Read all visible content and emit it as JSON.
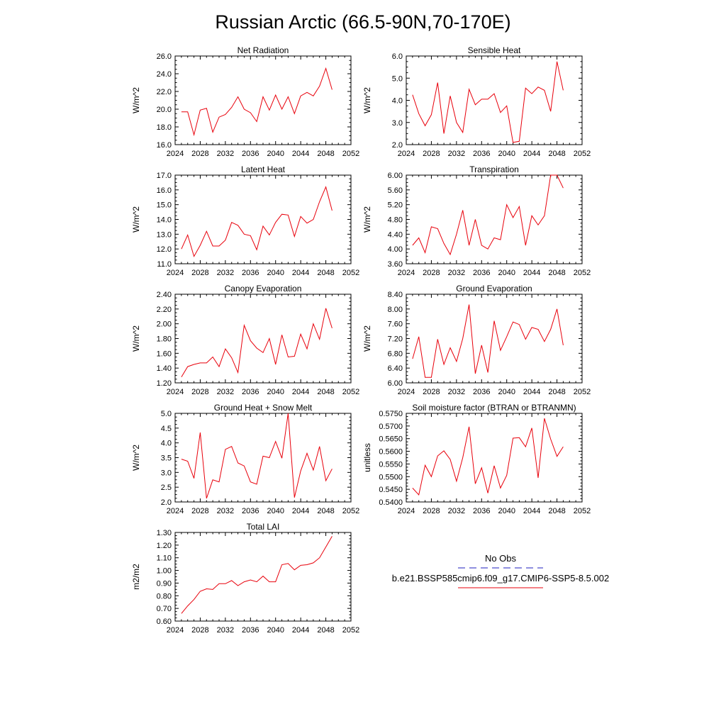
{
  "title": "Russian Arctic (66.5-90N,70-170E)",
  "colors": {
    "series": "#e8000b",
    "obs": "#1f1fbf",
    "axis": "#000000"
  },
  "legend": {
    "obs_label": "No Obs",
    "model_label": "b.e21.BSSP585cmip6.f09_g17.CMIP6-SSP5-8.5.002"
  },
  "years": [
    2025,
    2026,
    2027,
    2028,
    2029,
    2030,
    2031,
    2032,
    2033,
    2034,
    2035,
    2036,
    2037,
    2038,
    2039,
    2040,
    2041,
    2042,
    2043,
    2044,
    2045,
    2046,
    2047,
    2048,
    2049
  ],
  "chart_data": [
    {
      "type": "line",
      "title": "Net Radiation",
      "ylabel": "W/m^2",
      "xlim": [
        2024,
        2052
      ],
      "xticks": [
        "2024",
        "2028",
        "2032",
        "2036",
        "2040",
        "2044",
        "2048",
        "2052"
      ],
      "ylim": [
        16.0,
        26.0
      ],
      "yticks": [
        "16.0",
        "18.0",
        "20.0",
        "22.0",
        "24.0",
        "26.0"
      ],
      "values": [
        19.7,
        19.7,
        17.1,
        19.9,
        20.1,
        17.4,
        19.1,
        19.4,
        20.2,
        21.4,
        20.0,
        19.6,
        18.6,
        21.4,
        19.9,
        21.6,
        20.0,
        21.4,
        19.5,
        21.5,
        21.9,
        21.5,
        22.6,
        24.6,
        22.2
      ]
    },
    {
      "type": "line",
      "title": "Sensible Heat",
      "ylabel": "W/m^2",
      "xlim": [
        2024,
        2052
      ],
      "xticks": [
        "2024",
        "2028",
        "2032",
        "2036",
        "2040",
        "2044",
        "2048",
        "2052"
      ],
      "ylim": [
        2.0,
        6.0
      ],
      "yticks": [
        "2.0",
        "3.0",
        "4.0",
        "5.0",
        "6.0"
      ],
      "values": [
        4.25,
        3.4,
        2.85,
        3.35,
        4.8,
        2.5,
        4.2,
        3.0,
        2.55,
        4.5,
        3.8,
        4.05,
        4.05,
        4.3,
        3.45,
        3.75,
        2.1,
        2.15,
        4.55,
        4.3,
        4.6,
        4.45,
        3.5,
        5.75,
        4.45
      ]
    },
    {
      "type": "line",
      "title": "Latent Heat",
      "ylabel": "W/m^2",
      "xlim": [
        2024,
        2052
      ],
      "xticks": [
        "2024",
        "2028",
        "2032",
        "2036",
        "2040",
        "2044",
        "2048",
        "2052"
      ],
      "ylim": [
        11.0,
        17.0
      ],
      "yticks": [
        "11.0",
        "12.0",
        "13.0",
        "14.0",
        "15.0",
        "16.0",
        "17.0"
      ],
      "values": [
        12.0,
        12.95,
        11.5,
        12.25,
        13.2,
        12.2,
        12.2,
        12.6,
        13.8,
        13.6,
        13.0,
        12.9,
        11.95,
        13.55,
        12.95,
        13.8,
        14.35,
        14.3,
        12.85,
        14.2,
        13.75,
        14.0,
        15.2,
        16.2,
        14.6
      ]
    },
    {
      "type": "line",
      "title": "Transpiration",
      "ylabel": "W/m^2",
      "xlim": [
        2024,
        2052
      ],
      "xticks": [
        "2024",
        "2028",
        "2032",
        "2036",
        "2040",
        "2044",
        "2048",
        "2052"
      ],
      "ylim": [
        3.6,
        6.0
      ],
      "yticks": [
        "3.60",
        "4.00",
        "4.40",
        "4.80",
        "5.20",
        "5.60",
        "6.00"
      ],
      "values": [
        4.1,
        4.3,
        3.9,
        4.6,
        4.55,
        4.15,
        3.85,
        4.4,
        5.05,
        4.1,
        4.8,
        4.1,
        4.0,
        4.3,
        4.25,
        5.2,
        4.85,
        5.15,
        4.1,
        4.9,
        4.65,
        4.9,
        6.0,
        6.0,
        5.65
      ]
    },
    {
      "type": "line",
      "title": "Canopy Evaporation",
      "ylabel": "W/m^2",
      "xlim": [
        2024,
        2052
      ],
      "xticks": [
        "2024",
        "2028",
        "2032",
        "2036",
        "2040",
        "2044",
        "2048",
        "2052"
      ],
      "ylim": [
        1.2,
        2.4
      ],
      "yticks": [
        "1.20",
        "1.40",
        "1.60",
        "1.80",
        "2.00",
        "2.20",
        "2.40"
      ],
      "values": [
        1.28,
        1.42,
        1.45,
        1.47,
        1.47,
        1.55,
        1.42,
        1.66,
        1.54,
        1.34,
        1.98,
        1.77,
        1.67,
        1.61,
        1.8,
        1.45,
        1.85,
        1.55,
        1.56,
        1.86,
        1.66,
        2.0,
        1.79,
        2.21,
        1.94
      ]
    },
    {
      "type": "line",
      "title": "Ground Evaporation",
      "ylabel": "W/m^2",
      "xlim": [
        2024,
        2052
      ],
      "xticks": [
        "2024",
        "2028",
        "2032",
        "2036",
        "2040",
        "2044",
        "2048",
        "2052"
      ],
      "ylim": [
        6.0,
        8.4
      ],
      "yticks": [
        "6.00",
        "6.40",
        "6.80",
        "7.20",
        "7.60",
        "8.00",
        "8.40"
      ],
      "values": [
        6.65,
        7.25,
        6.15,
        6.15,
        7.18,
        6.5,
        6.95,
        6.58,
        7.2,
        8.12,
        6.25,
        7.02,
        6.28,
        7.68,
        6.88,
        7.25,
        7.65,
        7.58,
        7.18,
        7.5,
        7.45,
        7.12,
        7.45,
        8.0,
        7.02
      ]
    },
    {
      "type": "line",
      "title": "Ground Heat + Snow Melt",
      "ylabel": "W/m^2",
      "xlim": [
        2024,
        2052
      ],
      "xticks": [
        "2024",
        "2028",
        "2032",
        "2036",
        "2040",
        "2044",
        "2048",
        "2052"
      ],
      "ylim": [
        2.0,
        5.0
      ],
      "yticks": [
        "2.0",
        "2.5",
        "3.0",
        "3.5",
        "4.0",
        "4.5",
        "5.0"
      ],
      "values": [
        3.45,
        3.38,
        2.8,
        4.35,
        2.12,
        2.75,
        2.68,
        3.78,
        3.88,
        3.32,
        3.22,
        2.68,
        2.6,
        3.55,
        3.5,
        4.05,
        3.48,
        5.0,
        2.15,
        3.05,
        3.65,
        3.08,
        3.88,
        2.72,
        3.12
      ]
    },
    {
      "type": "line",
      "title": "Soil moisture factor (BTRAN or BTRANMN)",
      "ylabel": "unitless",
      "xlim": [
        2024,
        2052
      ],
      "xticks": [
        "2024",
        "2028",
        "2032",
        "2036",
        "2040",
        "2044",
        "2048",
        "2052"
      ],
      "ylim": [
        0.54,
        0.575
      ],
      "yticks": [
        "0.5400",
        "0.5450",
        "0.5500",
        "0.5550",
        "0.5600",
        "0.5650",
        "0.5700",
        "0.5750"
      ],
      "values": [
        0.5455,
        0.5428,
        0.5545,
        0.55,
        0.5582,
        0.5602,
        0.5568,
        0.5482,
        0.5575,
        0.5697,
        0.5472,
        0.5535,
        0.5435,
        0.5543,
        0.5455,
        0.5505,
        0.5652,
        0.5654,
        0.5618,
        0.5692,
        0.5495,
        0.573,
        0.5648,
        0.558,
        0.5618
      ]
    },
    {
      "type": "line",
      "title": "Total LAI",
      "ylabel": "m2/m2",
      "xlim": [
        2024,
        2052
      ],
      "xticks": [
        "2024",
        "2028",
        "2032",
        "2036",
        "2040",
        "2044",
        "2048",
        "2052"
      ],
      "ylim": [
        0.6,
        1.3
      ],
      "yticks": [
        "0.60",
        "0.70",
        "0.80",
        "0.90",
        "1.00",
        "1.10",
        "1.20",
        "1.30"
      ],
      "values": [
        0.66,
        0.72,
        0.77,
        0.835,
        0.855,
        0.85,
        0.895,
        0.895,
        0.92,
        0.88,
        0.91,
        0.925,
        0.91,
        0.955,
        0.91,
        0.91,
        1.045,
        1.055,
        1.005,
        1.04,
        1.045,
        1.06,
        1.1,
        1.185,
        1.27
      ]
    }
  ]
}
